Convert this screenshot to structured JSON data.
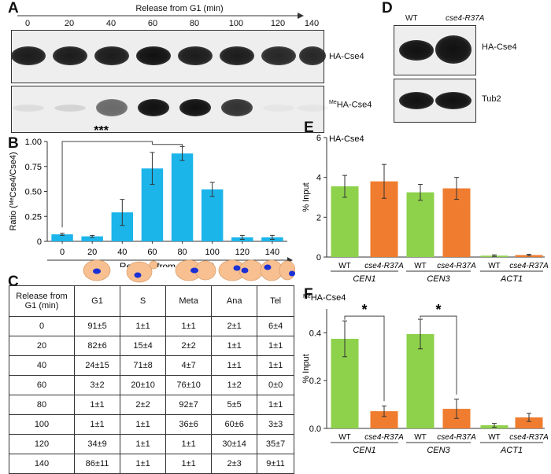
{
  "panel_A": {
    "label": "A",
    "xlabel": "Release from G1 (min)",
    "timepoints": [
      "0",
      "20",
      "40",
      "60",
      "80",
      "100",
      "120",
      "140"
    ],
    "blot1_label": "HA-Cse4",
    "blot2_label_sup": "Me",
    "blot2_label": "HA-Cse4",
    "band_intensity_top": [
      0.95,
      0.95,
      0.95,
      1.0,
      0.95,
      0.95,
      0.9,
      0.9
    ],
    "band_intensity_bottom": [
      0.08,
      0.12,
      0.6,
      1.0,
      1.0,
      0.85,
      0.03,
      0.02
    ]
  },
  "panel_D": {
    "label": "D",
    "lane1": "WT",
    "lane2": "cse4-R37A",
    "blot1_label": "HA-Cse4",
    "blot2_label": "Tub2"
  },
  "panel_C": {
    "label": "C",
    "header": [
      "Release from G1 (min)",
      "G1",
      "S",
      "Meta",
      "Ana",
      "Tel"
    ],
    "rows": [
      [
        "0",
        "91±5",
        "1±1",
        "1±1",
        "2±1",
        "6±4"
      ],
      [
        "20",
        "82±6",
        "15±4",
        "2±2",
        "1±1",
        "1±1"
      ],
      [
        "40",
        "24±15",
        "71±8",
        "4±7",
        "1±1",
        "1±1"
      ],
      [
        "60",
        "3±2",
        "20±10",
        "76±10",
        "1±2",
        "0±0"
      ],
      [
        "80",
        "1±1",
        "2±2",
        "92±7",
        "5±5",
        "1±1"
      ],
      [
        "100",
        "1±1",
        "1±1",
        "36±6",
        "60±6",
        "3±3"
      ],
      [
        "120",
        "34±9",
        "1±1",
        "1±1",
        "30±14",
        "35±7"
      ],
      [
        "140",
        "86±11",
        "1±1",
        "1±1",
        "2±3",
        "9±11"
      ]
    ]
  },
  "chart_data": [
    {
      "panel": "B",
      "type": "bar",
      "categories": [
        "0",
        "20",
        "40",
        "60",
        "80",
        "100",
        "120",
        "140"
      ],
      "values": [
        0.07,
        0.05,
        0.29,
        0.73,
        0.88,
        0.52,
        0.04,
        0.04
      ],
      "errors": [
        0.01,
        0.01,
        0.13,
        0.16,
        0.07,
        0.07,
        0.02,
        0.02
      ],
      "ylim": [
        0,
        1.0
      ],
      "yticks": [
        "0",
        "0.25",
        "0.50",
        "0.75",
        "1.00"
      ],
      "ylabel_pre": "Ratio (",
      "ylabel_sup": "Me",
      "ylabel_post": "Cse4/Cse4)",
      "xlabel": "Release from G1 (min)",
      "annotation": "***",
      "color": "#1bb5ea"
    },
    {
      "panel": "E",
      "type": "bar",
      "title": "HA-Cse4",
      "categories": [
        "WT",
        "cse4-R37A",
        "WT",
        "cse4-R37A",
        "WT",
        "cse4-R37A"
      ],
      "groups": [
        "CEN1",
        "CEN3",
        "ACT1"
      ],
      "values": [
        3.55,
        3.8,
        3.25,
        3.45,
        0.07,
        0.1
      ],
      "errors": [
        0.55,
        0.85,
        0.4,
        0.55,
        0.04,
        0.04
      ],
      "ylim": [
        0,
        6
      ],
      "yticks": [
        "0",
        "2",
        "4",
        "6"
      ],
      "ylabel": "% Input",
      "colors": {
        "WT": "#8ed14b",
        "cse4-R37A": "#ef7c2f"
      }
    },
    {
      "panel": "F",
      "type": "bar",
      "title_sup": "Me",
      "title": "HA-Cse4",
      "categories": [
        "WT",
        "cse4-R37A",
        "WT",
        "cse4-R37A",
        "WT",
        "cse4-R37A"
      ],
      "groups": [
        "CEN1",
        "CEN3",
        "ACT1"
      ],
      "values": [
        0.375,
        0.072,
        0.395,
        0.082,
        0.013,
        0.046
      ],
      "errors": [
        0.075,
        0.022,
        0.062,
        0.04,
        0.008,
        0.017
      ],
      "ylim": [
        0,
        0.5
      ],
      "yticks": [
        "0.0",
        "0.2",
        "0.4"
      ],
      "ylabel": "% Input",
      "annotation": "*",
      "colors": {
        "WT": "#8ed14b",
        "cse4-R37A": "#ef7c2f"
      }
    }
  ],
  "panel_labels": {
    "B": "B",
    "E": "E",
    "F": "F"
  }
}
